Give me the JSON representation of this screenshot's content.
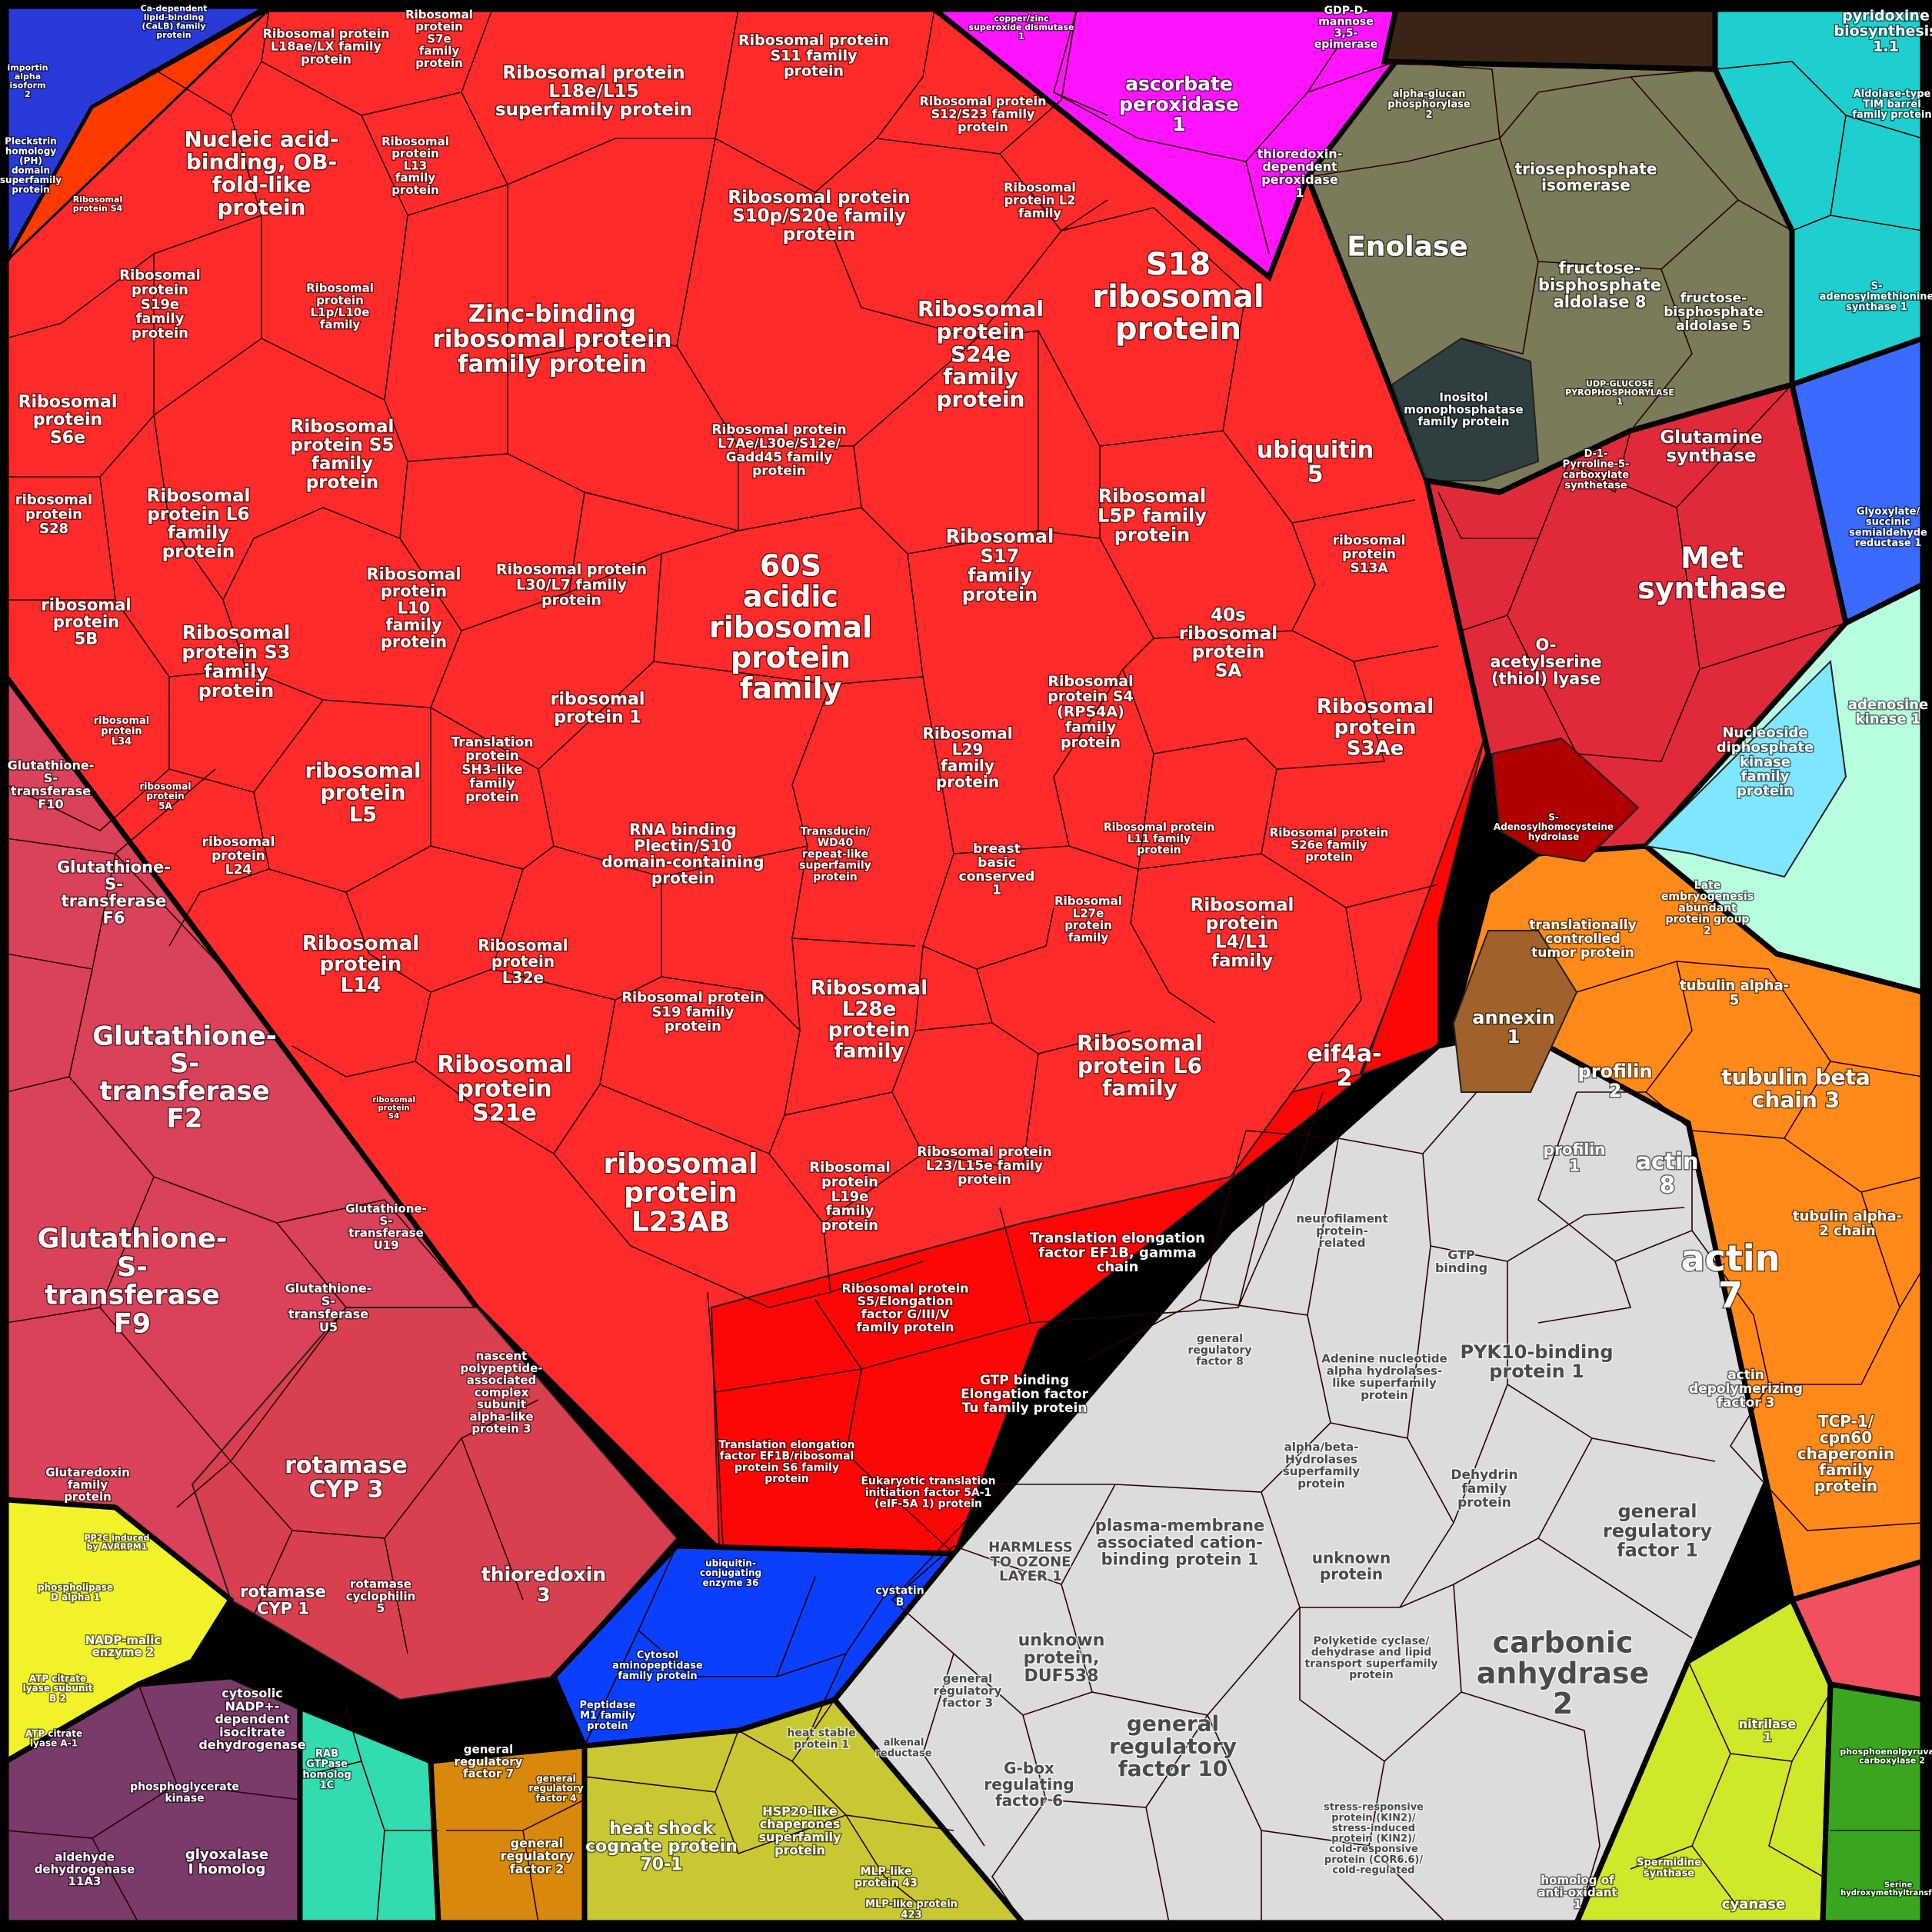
{
  "colors": {
    "ribosome_red": "#ff2a2a",
    "ribosome_dark": "#ff0000",
    "gst_pink": "#d9425a",
    "gray_region": "#dcdcdc",
    "orange_region": "#ff8a1a",
    "blue_region": "#0b3fff",
    "olive_region": "#7b7b5a",
    "magenta_region": "#ff14ff",
    "teal_region": "#1fcfcf",
    "crimson_region": "#e02a3a",
    "yellow_region": "#c8c832",
    "green_region": "#3aa620",
    "purple_region": "#7a3a6a",
    "cyan_region": "#7fe6ff",
    "brown_region": "#a0622a",
    "mint_region": "#b8ffe0"
  },
  "labels": {
    "l_60s": "60S\nacidic\nribosomal\nprotein\nfamily",
    "l_l23ab": "ribosomal\nprotein\nL23AB",
    "l_zinc": "Zinc-binding\nribosomal protein\nfamily protein",
    "l_s18": "S18\nribosomal\nprotein",
    "l_ubq": "ubiquitin\n5",
    "l_s24e": "Ribosomal\nprotein\nS24e\nfamily\nprotein",
    "l_s10p": "Ribosomal protein\nS10p/S20e family\nprotein",
    "l_l18e": "Ribosomal protein\nL18e/L15\nsuperfamily protein",
    "l_s11": "Ribosomal protein\nS11 family\nprotein",
    "l_l18ae": "Ribosomal protein\nL18ae/LX family\nprotein",
    "l_s7e": "Ribosomal\nprotein\nS7e\nfamily\nprotein",
    "l_ob": "Nucleic acid-\nbinding, OB-\nfold-like\nprotein",
    "l_l13": "Ribosomal\nprotein\nL13\nfamily\nprotein",
    "l_s12": "Ribosomal protein\nS12/S23 family\nprotein",
    "l_l2": "Ribosomal\nprotein L2\nfamily",
    "l_s19e": "Ribosomal\nprotein\nS19e\nfamily\nprotein",
    "l_l1p": "Ribosomal\nprotein\nL1p/L10e\nfamily",
    "l_s6e": "Ribosomal\nprotein\nS6e",
    "l_s5": "Ribosomal\nprotein S5\nfamily\nprotein",
    "l_l7ae": "Ribosomal protein\nL7Ae/L30e/S12e/\nGadd45 family\nprotein",
    "l_s28": "ribosomal\nprotein\nS28",
    "l_l6a": "Ribosomal\nprotein L6\nfamily\nprotein",
    "l_l30": "Ribosomal protein\nL30/L7 family\nprotein",
    "l_s17": "Ribosomal\nS17\nfamily\nprotein",
    "l_l5p": "Ribosomal\nL5P family\nprotein",
    "l_s13a": "ribosomal\nprotein\nS13A",
    "l_5b": "ribosomal\nprotein\n5B",
    "l_l10": "Ribosomal\nprotein\nL10\nfamily\nprotein",
    "l_s3": "Ribosomal\nprotein S3\nfamily\nprotein",
    "l_rp1": "ribosomal\nprotein 1",
    "l_40s": "40s\nribosomal\nprotein\nSA",
    "l_s4": "Ribosomal\nprotein S4\n(RPS4A)\nfamily\nprotein",
    "l_s3ae": "Ribosomal\nprotein\nS3Ae",
    "l_l5": "ribosomal\nprotein\nL5",
    "l_sh3": "Translation\nprotein\nSH3-like\nfamily\nprotein",
    "l_l29": "Ribosomal\nL29\nfamily\nprotein",
    "l_l11": "Ribosomal protein\nL11 family\nprotein",
    "l_s26e": "Ribosomal protein\nS26e family\nprotein",
    "l_l24": "ribosomal\nprotein\nL24",
    "l_plectin": "RNA binding\nPlectin/S10\ndomain-containing\nprotein",
    "l_wd40": "Transducin/\nWD40\nrepeat-like\nsuperfamily\nprotein",
    "l_breast": "breast\nbasic\nconserved\n1",
    "l_l27e": "Ribosomal\nL27e\nprotein\nfamily",
    "l_l4": "Ribosomal\nprotein\nL4/L1\nfamily",
    "l_l14": "Ribosomal\nprotein\nL14",
    "l_l32e": "Ribosomal\nprotein\nL32e",
    "l_s19": "Ribosomal protein\nS19 family\nprotein",
    "l_l28e": "Ribosomal\nL28e\nprotein\nfamily",
    "l_l6b": "Ribosomal\nprotein L6\nfamily",
    "l_eif4a": "eif4a-\n2",
    "l_s21e": "Ribosomal\nprotein\nS21e",
    "l_l19e": "Ribosomal\nprotein\nL19e\nfamily\nprotein",
    "l_l23": "Ribosomal protein\nL23/L15e family\nprotein",
    "l_ef1b": "Translation elongation\nfactor EF1B, gamma\nchain",
    "l_s5elong": "Ribosomal protein\nS5/Elongation\nfactor G/III/V\nfamily protein",
    "l_gtp_tu": "GTP binding\nElongation factor\nTu family protein",
    "l_ef1b_s6": "Translation elongation\nfactor EF1B/ribosomal\nprotein S6 family\nprotein",
    "l_eif5a": "Eukaryotic translation\ninitiation factor 5A-1\n(eIF-5A 1) protein",
    "l_gst_f2": "Glutathione-\nS-\ntransferase\nF2",
    "l_gst_f9": "Glutathione-\nS-\ntransferase\nF9",
    "l_gst_f6": "Glutathione-\nS-\ntransferase\nF6",
    "l_gst_f10": "Glutathione-\nS-\ntransferase\nF10",
    "l_gst_u19": "Glutathione-\nS-\ntransferase\nU19",
    "l_gst_u5": "Glutathione-\nS-\ntransferase\nU5",
    "l_rot3": "rotamase\nCYP 3",
    "l_rot1": "rotamase\nCYP 1",
    "l_rotcyc5": "rotamase\ncyclophilin\n5",
    "l_trx3": "thioredoxin\n3",
    "l_nascent": "nascent\npolypeptide-\nassociated\ncomplex\nsubunit\nalpha-like\nprotein 3",
    "l_grx": "Glutaredoxin\nfamily\nprotein",
    "l_enolase": "Enolase",
    "l_tpi": "triosephosphate\nisomerase",
    "l_fba8": "fructose-\nbisphosphate\naldolase 8",
    "l_fba5": "fructose-\nbisphosphate\naldolase 5",
    "l_inositol": "Inositol\nmonophosphatase\nfamily protein",
    "l_udp": "UDP-GLUCOSE\nPYROPHOSPHORYLASE\n1",
    "l_alphaglucan": "alpha-glucan\nphosphorylase\n2",
    "l_ascorbate": "ascorbate\nperoxidase\n1",
    "l_thioredoxin_px": "thioredoxin-\ndependent\nperoxidase\n1",
    "l_gdp": "GDP-D-\nmannose\n3,5-\nepimerase",
    "l_pyridoxine": "pyridoxine\nbiosynthesis\n1.1",
    "l_sam": "S-\nadenosylmethionine\nsynthase 1",
    "l_glnsyn": "Glutamine\nsynthase",
    "l_met": "Met\nsynthase",
    "l_oas": "O-\nacetylserine\n(thiol) lyase",
    "l_pyrroline": "D-1-\nPyrroline-5-\ncarboxylate\nsynthetase",
    "l_sah": "S-\nAdenosylhomocysteine\nhydrolase",
    "l_adenosine": "adenosine\nkinase 1",
    "l_ndk": "Nucleoside\ndiphosphate\nkinase\nfamily\nprotein",
    "l_annexin": "annexin\n1",
    "l_tctp": "translationally\ncontrolled\ntumor protein",
    "l_lea": "Late\nembryogenesis\nabundant\nprotein group\n2",
    "l_tuba5": "tubulin alpha-\n5",
    "l_tubb3": "tubulin beta\nchain 3",
    "l_profilin2": "profilin\n2",
    "l_profilin1": "profilin\n1",
    "l_actin8": "actin\n8",
    "l_tuba2": "tubulin alpha-\n2 chain",
    "l_actin7": "actin\n7",
    "l_adf3": "actin\ndepolymerizing\nfactor 3",
    "l_tcp1": "TCP-1/\ncpn60\nchaperonin\nfamily\nprotein",
    "l_pyk10": "PYK10-binding\nprotein 1",
    "l_adenine": "Adenine nucleotide\nalpha hydrolases-\nlike superfamily\nprotein",
    "l_pcap1": "plasma-membrane\nassociated cation-\nbinding protein 1",
    "l_harmless": "HARMLESS\nTO OZONE\nLAYER 1",
    "l_unknown": "unknown\nprotein",
    "l_duf538": "unknown\nprotein,\nDUF538",
    "l_grf1": "general\nregulatory\nfactor 1",
    "l_carbonic": "carbonic\nanhydrase\n2",
    "l_grf10": "general\nregulatory\nfactor 10",
    "l_gbox6": "G-box\nregulating\nfactor 6",
    "l_grf3": "general\nregulatory\nfactor 3",
    "l_polyketide": "Polyketide cyclase/\ndehydrase and lipid\ntransport superfamily\nprotein",
    "l_stress": "stress-responsive\nprotein (KIN2)/\nstress-induced\nprotein (KIN2)/\ncold-responsive\nprotein (COR6.6)/\ncold-regulated",
    "l_dehydrin": "Dehydrin\nfamily\nprotein",
    "l_alphabeta": "alpha/beta-\nHydrolases\nsuperfamily\nprotein",
    "l_gtpbind": "GTP\nbinding",
    "l_neurofil": "neurofilament\nprotein-\nrelated",
    "l_grf8": "general\nregulatory\nfactor 8",
    "l_ubc36": "ubiquitin-\nconjugating\nenzyme 36",
    "l_cysaminopep": "Cytosol\naminopeptidase\nfamily protein",
    "l_peptidase": "Peptidase\nM1 family\nprotein",
    "l_cystatin": "cystatin\nB",
    "l_hsc70": "heat shock\ncognate protein\n70-1",
    "l_hsp20": "HSP20-like\nchaperones\nsuperfamily\nprotein",
    "l_mlp43": "MLP-like\nprotein 43",
    "l_mlp423": "MLP-like protein\n423",
    "l_heatstable": "heat stable\nprotein 1",
    "l_grf7": "general\nregulatory\nfactor 7",
    "l_grf2": "general\nregulatory\nfactor 2",
    "l_grf4": "general\nregulatory\nfactor 4",
    "l_rab": "RAB\nGTPase\nhomolog\n1C",
    "l_aldehyde": "aldehyde\ndehydrogenase\n11A3",
    "l_glyoxalase": "glyoxalase\nI homolog",
    "l_pgk": "phosphoglycerate\nkinase",
    "l_icdh": "cytosolic\nNADP+-\ndependent\nisocitrate\ndehydrogenase",
    "l_nadpme": "NADP-malic\nenzyme 2",
    "l_atpcit2": "ATP citrate\nlyase subunit\nB 2",
    "l_atpcit1": "ATP citrate\nlyase A-1",
    "l_nitrilase": "nitrilase\n1",
    "l_cyanase": "cyanase",
    "l_antioxidant": "homolog of\nanti-oxidant\n1",
    "l_spermidine": "Spermidine\nsynthase",
    "l_pepcarb": "phosphoenolpyruvate\ncarboxylase 2",
    "l_serine": "Serine\nhydroxymethyltransferase",
    "l_alkenal": "alkenal\nreductase",
    "l_pleckstrin": "Pleckstrin\nhomology\n(PH)\ndomain\nsuperfamily\nprotein",
    "l_importin": "importin\nalpha\nisoform\n2",
    "l_s4small": "Ribosomal\nprotein S4",
    "l_aldolase_tim": "Aldolase-type\nTIM barrel\nfamily protein",
    "l_glyoxylate": "Glyoxylate/\nsuccinic\nsemialdehyde\nreductase 1",
    "l_l34": "ribosomal\nprotein\nL34",
    "l_s21": "ribosomal\nprotein\nS4",
    "l_5a": "ribosomal\nprotein\n5A",
    "l_pp2c": "PP2C induced\nby AVRRPM1",
    "l_phospholipase": "phospholipase\nD alpha 1",
    "l_copper": "copper/zinc\nsuperoxide dismutase\n1",
    "l_cabinding": "Ca-dependent\nlipid-binding\n(CaLB) family\nprotein"
  }
}
